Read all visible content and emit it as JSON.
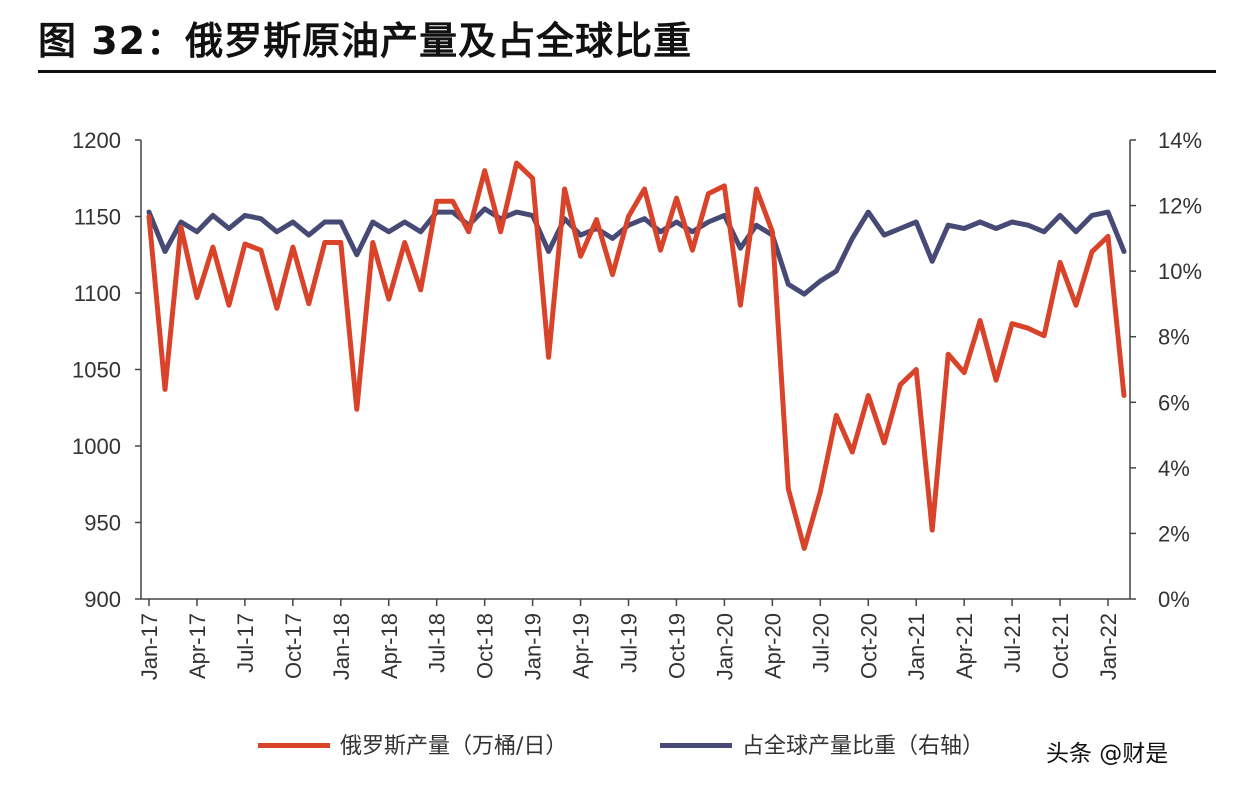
{
  "title": "图 32：俄罗斯原油产量及占全球比重",
  "watermark": "头条 @财是",
  "colors": {
    "production": "#d9432a",
    "share": "#474a75",
    "axis": "#444444"
  },
  "chart_data": {
    "type": "line",
    "x_tick_labels": [
      "Jan-17",
      "Apr-17",
      "Jul-17",
      "Oct-17",
      "Jan-18",
      "Apr-18",
      "Jul-18",
      "Oct-18",
      "Jan-19",
      "Apr-19",
      "Jul-19",
      "Oct-19",
      "Jan-20",
      "Apr-20",
      "Jul-20",
      "Oct-20",
      "Jan-21",
      "Apr-21",
      "Jul-21",
      "Oct-21",
      "Jan-22"
    ],
    "y_left": {
      "ylim": [
        900,
        1200
      ],
      "ticks": [
        "900",
        "950",
        "1000",
        "1050",
        "1100",
        "1150",
        "1200"
      ]
    },
    "y_right": {
      "ylim": [
        0,
        14
      ],
      "ticks": [
        "0%",
        "2%",
        "4%",
        "6%",
        "8%",
        "10%",
        "12%",
        "14%"
      ]
    },
    "legend_position": "bottom",
    "series": [
      {
        "name": "俄罗斯产量（万桶/日）",
        "axis": "left",
        "values": [
          1150,
          1037,
          1143,
          1097,
          1130,
          1092,
          1132,
          1128,
          1090,
          1130,
          1093,
          1133,
          1133,
          1024,
          1133,
          1096,
          1133,
          1102,
          1160,
          1160,
          1140,
          1180,
          1140,
          1185,
          1175,
          1058,
          1168,
          1124,
          1148,
          1112,
          1150,
          1168,
          1128,
          1162,
          1128,
          1165,
          1170,
          1092,
          1168,
          1140,
          972,
          933,
          970,
          1020,
          996,
          1033,
          1002,
          1040,
          1050,
          945,
          1060,
          1048,
          1082,
          1043,
          1080,
          1077,
          1072,
          1120,
          1092,
          1127,
          1137,
          1033
        ]
      },
      {
        "name": "占全球产量比重（右轴）",
        "axis": "right",
        "values": [
          11.8,
          10.6,
          11.5,
          11.2,
          11.7,
          11.3,
          11.7,
          11.6,
          11.2,
          11.5,
          11.1,
          11.5,
          11.5,
          10.5,
          11.5,
          11.2,
          11.5,
          11.2,
          11.8,
          11.8,
          11.4,
          11.9,
          11.6,
          11.8,
          11.7,
          10.6,
          11.6,
          11.1,
          11.3,
          11.0,
          11.4,
          11.6,
          11.2,
          11.5,
          11.2,
          11.5,
          11.7,
          10.7,
          11.4,
          11.1,
          9.6,
          9.3,
          9.7,
          10.0,
          11.0,
          11.8,
          11.1,
          11.3,
          11.5,
          10.3,
          11.4,
          11.3,
          11.5,
          11.3,
          11.5,
          11.4,
          11.2,
          11.7,
          11.2,
          11.7,
          11.8,
          10.6
        ]
      }
    ]
  }
}
